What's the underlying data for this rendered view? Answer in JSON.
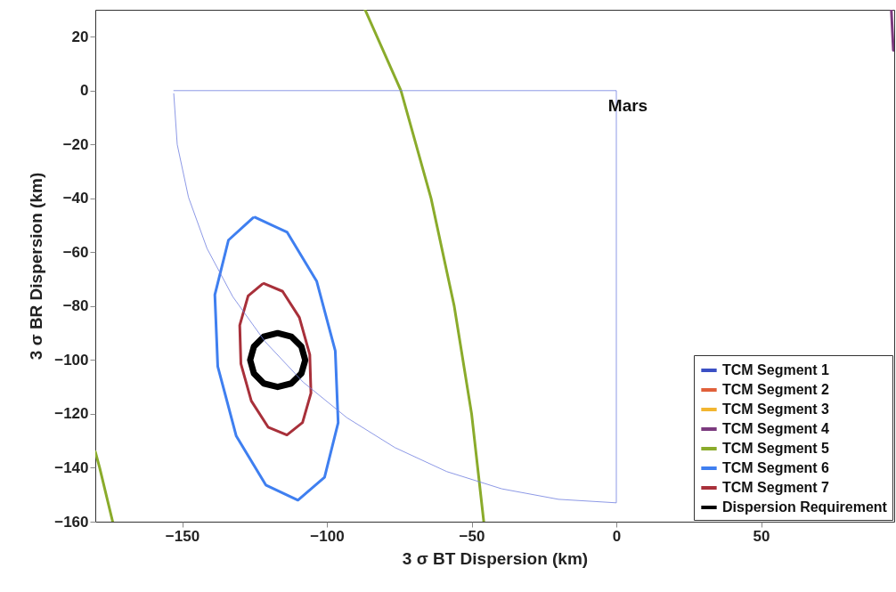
{
  "chart_data": {
    "type": "line",
    "xlabel": "3 σ BT Dispersion (km)",
    "ylabel": "3 σ BR Dispersion (km)",
    "xlim": [
      -180,
      96
    ],
    "ylim": [
      -160,
      30
    ],
    "xticks": [
      -150,
      -100,
      -50,
      0,
      50
    ],
    "yticks": [
      -160,
      -140,
      -120,
      -100,
      -80,
      -60,
      -40,
      -20,
      0,
      20
    ],
    "grid": false,
    "legend": "bottom right",
    "annotations": [
      "Mars"
    ],
    "series": [
      {
        "name": "TCM Segment 1",
        "color": "#3b4fc4"
      },
      {
        "name": "TCM Segment 2",
        "color": "#e0603a"
      },
      {
        "name": "TCM Segment 3",
        "color": "#f2b530"
      },
      {
        "name": "TCM Segment 4",
        "color": "#7b3a7e",
        "x": [
          95,
          95.7
        ],
        "values": [
          30,
          15
        ]
      },
      {
        "name": "TCM Segment 5",
        "color": "#8aab2b",
        "x": [
          -86.8,
          -74.4,
          -64,
          -56,
          -50,
          -45.8,
          null,
          -180,
          -178.5,
          -174
        ],
        "values": [
          30,
          0,
          -40,
          -80,
          -120,
          -160,
          null,
          -134,
          -140,
          -160
        ]
      },
      {
        "name": "TCM Segment 6",
        "color": "#3f7ff0",
        "x": [
          -124.8,
          -113.7,
          -103.5,
          -97.1,
          -96.1,
          -100.8,
          -110.0,
          -121.1,
          -131.3,
          -137.7,
          -138.7,
          -134.0,
          -125.5
        ],
        "values": [
          -47.0,
          -52.6,
          -70.8,
          -96.6,
          -123.3,
          -143.5,
          -152.0,
          -146.4,
          -128.2,
          -102.4,
          -75.8,
          -55.5,
          -47.2
        ]
      },
      {
        "name": "TCM Segment 7",
        "color": "#a8303a",
        "x": [
          -121.8,
          -115.3,
          -109.5,
          -105.9,
          -105.5,
          -108.4,
          -113.8,
          -120.3,
          -126.1,
          -129.7,
          -130.1,
          -127.2,
          -122.3
        ],
        "values": [
          -71.6,
          -74.5,
          -84.2,
          -98.0,
          -112.3,
          -123.2,
          -127.8,
          -124.9,
          -115.2,
          -101.4,
          -87.1,
          -76.2,
          -71.8
        ]
      },
      {
        "name": "Dispersion Requirement",
        "color": "#000000",
        "x": [
          -107.5,
          -108.8,
          -112.3,
          -117,
          -121.8,
          -125.2,
          -126.5,
          -125.2,
          -121.8,
          -117,
          -112.3,
          -108.8,
          -107.6
        ],
        "values": [
          -100,
          -95,
          -91.3,
          -90,
          -91.3,
          -95,
          -100,
          -105,
          -108.7,
          -110,
          -108.7,
          -105,
          -100.5
        ]
      },
      {
        "color": "#7080e0",
        "x": [
          -153,
          0,
          0,
          -20.0,
          -39.6,
          -58.6,
          -76.5,
          -93.1,
          -108.2,
          -121.4,
          -132.5,
          -141.4,
          -147.8,
          -151.7,
          -152.9
        ],
        "values": [
          0,
          0,
          -153,
          -151.7,
          -147.8,
          -141.4,
          -132.5,
          -121.4,
          -108.2,
          -93.1,
          -76.5,
          -58.6,
          -39.6,
          -20.0,
          -1
        ]
      }
    ]
  }
}
